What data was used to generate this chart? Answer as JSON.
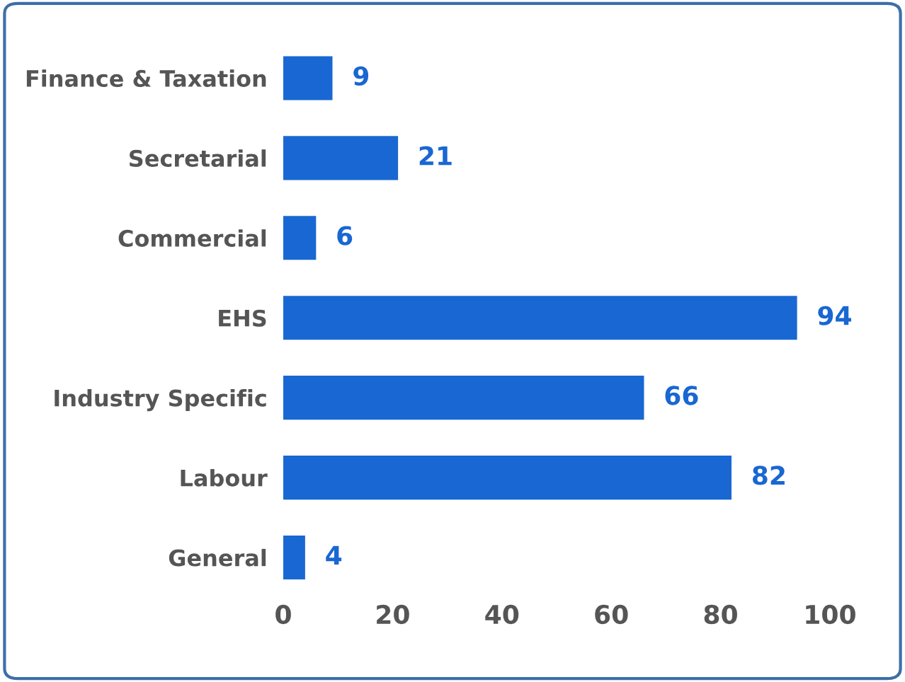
{
  "chart_data": {
    "type": "bar",
    "orientation": "horizontal",
    "categories": [
      "Finance & Taxation",
      "Secretarial",
      "Commercial",
      "EHS",
      "Industry Specific",
      "Labour",
      "General"
    ],
    "values": [
      9,
      21,
      6,
      94,
      66,
      82,
      4
    ],
    "color": "#1967d2",
    "data_labels": true,
    "xlim": [
      0,
      100
    ],
    "xticks": [
      0,
      20,
      40,
      60,
      80,
      100
    ],
    "grid": false,
    "legend": false
  }
}
